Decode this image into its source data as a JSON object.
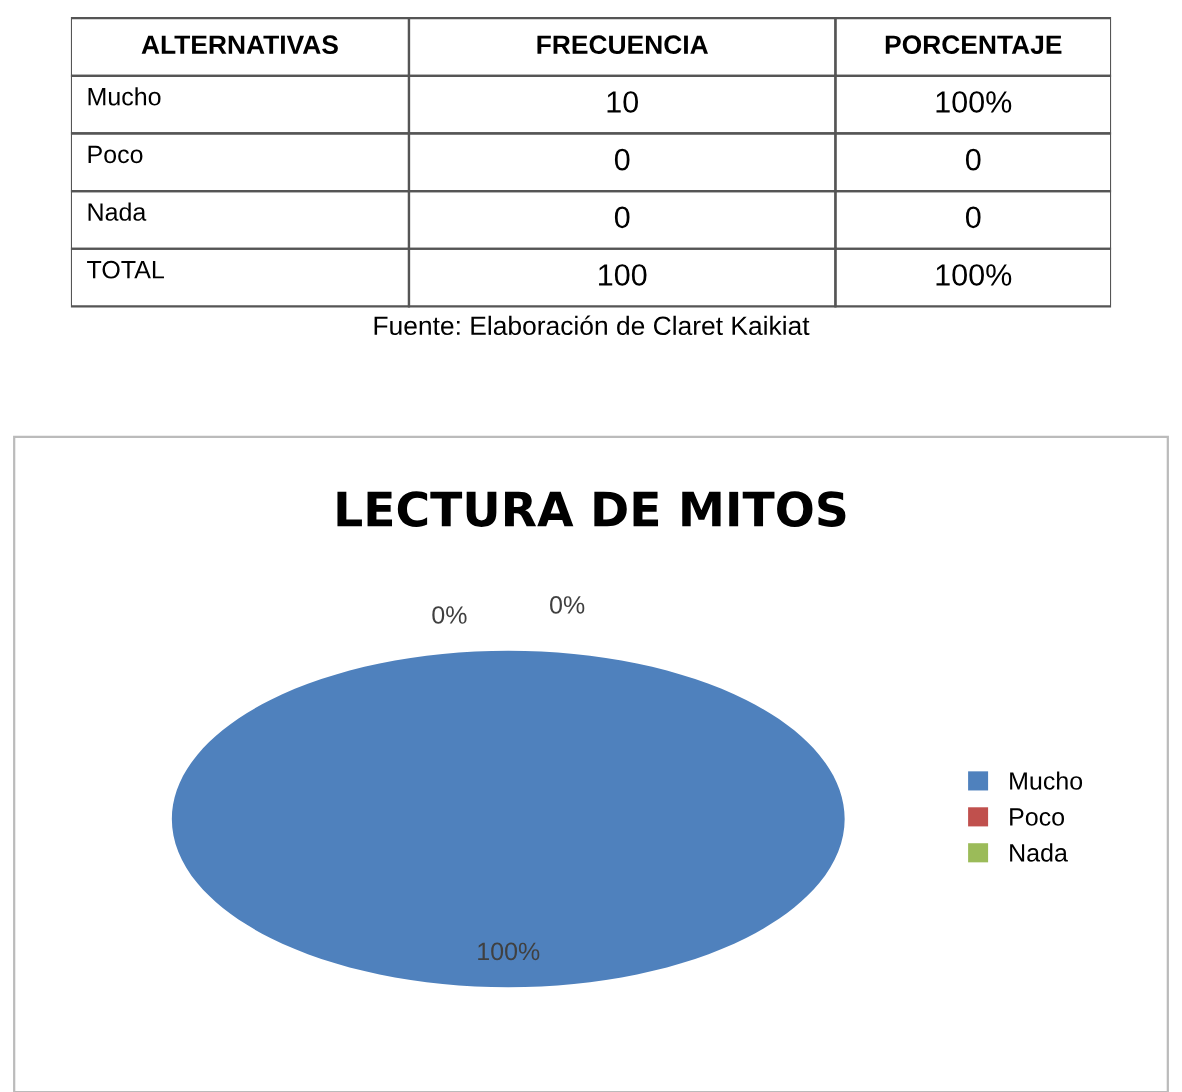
{
  "chart_data": [
    {
      "type": "other",
      "annotations": [
        "ALTERNATIVAS",
        "FRECUENCIA",
        "PORCENTAJE",
        "Mucho",
        "10",
        "100%",
        "Poco",
        "0",
        "0",
        "Nada",
        "0",
        "0",
        "TOTAL",
        "100",
        "100%",
        "Fuente: Elaboración de Claret Kaikiat"
      ]
    },
    {
      "type": "pie",
      "title": "LECTURA DE MITOS",
      "categories": [
        "Mucho",
        "Poco",
        "Nada"
      ],
      "values": [
        100,
        0,
        0
      ],
      "colors": [
        "#4f81bd",
        "#c0504d",
        "#9bbb59"
      ],
      "value_labels": [
        "100%",
        "0%",
        "0%"
      ],
      "legend": "right"
    }
  ]
}
